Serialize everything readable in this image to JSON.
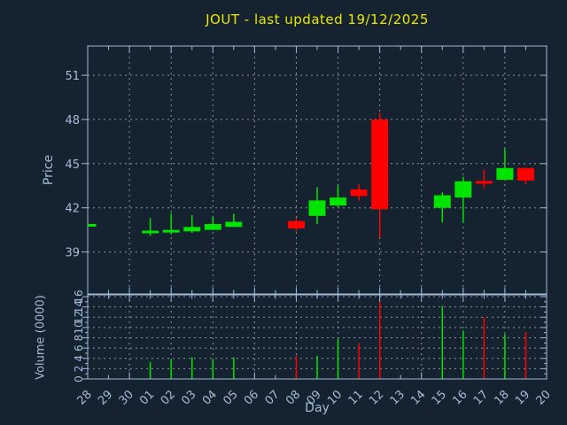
{
  "chart": {
    "title": "JOUT - last updated 19/12/2025",
    "price_axis_label": "Price",
    "volume_axis_label": "Volume (0000)",
    "day_axis_label": "Day"
  },
  "chart_data": {
    "type": "candlestick_with_volume",
    "title": "JOUT - last updated 19/12/2025",
    "xlabel": "Day",
    "ylabel_price": "Price",
    "ylabel_volume": "Volume (0000)",
    "grid": true,
    "x_categories": [
      "28",
      "29",
      "30",
      "01",
      "02",
      "03",
      "04",
      "05",
      "06",
      "07",
      "08",
      "09",
      "10",
      "11",
      "12",
      "13",
      "14",
      "15",
      "16",
      "17",
      "18",
      "19",
      "20"
    ],
    "price_axis": {
      "ticks": [
        39,
        42,
        45,
        48,
        51
      ],
      "range": [
        36.2,
        53.0
      ]
    },
    "volume_axis": {
      "ticks": [
        0,
        2,
        4,
        6,
        8,
        10,
        12,
        14,
        16
      ],
      "range": [
        0,
        16.4
      ]
    },
    "candles": [
      {
        "day": "28",
        "open": 40.8,
        "high": 40.9,
        "low": 40.75,
        "close": 40.9,
        "volume": null
      },
      {
        "day": "01",
        "open": 40.3,
        "high": 41.3,
        "low": 40.1,
        "close": 40.45,
        "volume": 3.3
      },
      {
        "day": "02",
        "open": 40.35,
        "high": 41.6,
        "low": 40.2,
        "close": 40.5,
        "volume": 3.8
      },
      {
        "day": "03",
        "open": 40.4,
        "high": 41.5,
        "low": 40.3,
        "close": 40.7,
        "volume": 4.2
      },
      {
        "day": "04",
        "open": 40.5,
        "high": 41.4,
        "low": 40.5,
        "close": 40.9,
        "volume": 3.7
      },
      {
        "day": "05",
        "open": 40.7,
        "high": 41.6,
        "low": 40.7,
        "close": 41.05,
        "volume": 4.2
      },
      {
        "day": "08",
        "open": 41.1,
        "high": 41.3,
        "low": 40.4,
        "close": 40.6,
        "volume": 4.5
      },
      {
        "day": "09",
        "open": 41.45,
        "high": 43.4,
        "low": 40.9,
        "close": 42.5,
        "volume": 4.5
      },
      {
        "day": "10",
        "open": 42.15,
        "high": 43.5,
        "low": 42.05,
        "close": 42.7,
        "volume": 7.8
      },
      {
        "day": "11",
        "open": 43.25,
        "high": 43.6,
        "low": 42.5,
        "close": 42.8,
        "volume": 7.0
      },
      {
        "day": "12",
        "open": 48.0,
        "high": 48.45,
        "low": 40.0,
        "close": 41.9,
        "volume": 15.0
      },
      {
        "day": "15",
        "open": 42.0,
        "high": 43.05,
        "low": 41.0,
        "close": 42.85,
        "volume": 14.2
      },
      {
        "day": "16",
        "open": 42.7,
        "high": 44.1,
        "low": 41.0,
        "close": 43.8,
        "volume": 9.4
      },
      {
        "day": "17",
        "open": 43.82,
        "high": 44.6,
        "low": 43.3,
        "close": 43.78,
        "volume": 12.0
      },
      {
        "day": "18",
        "open": 43.9,
        "high": 46.0,
        "low": 43.9,
        "close": 44.7,
        "volume": 8.7
      },
      {
        "day": "19",
        "open": 44.7,
        "high": 44.7,
        "low": 43.6,
        "close": 43.85,
        "volume": 9.1
      }
    ],
    "colors": {
      "background": "#15222f",
      "axis": "#9fbbdd",
      "text": "#a4bcd8",
      "grid": "#8a95a1",
      "title": "#e8e800",
      "up": "#00e400",
      "down": "#ff0000"
    },
    "legend": "none"
  }
}
